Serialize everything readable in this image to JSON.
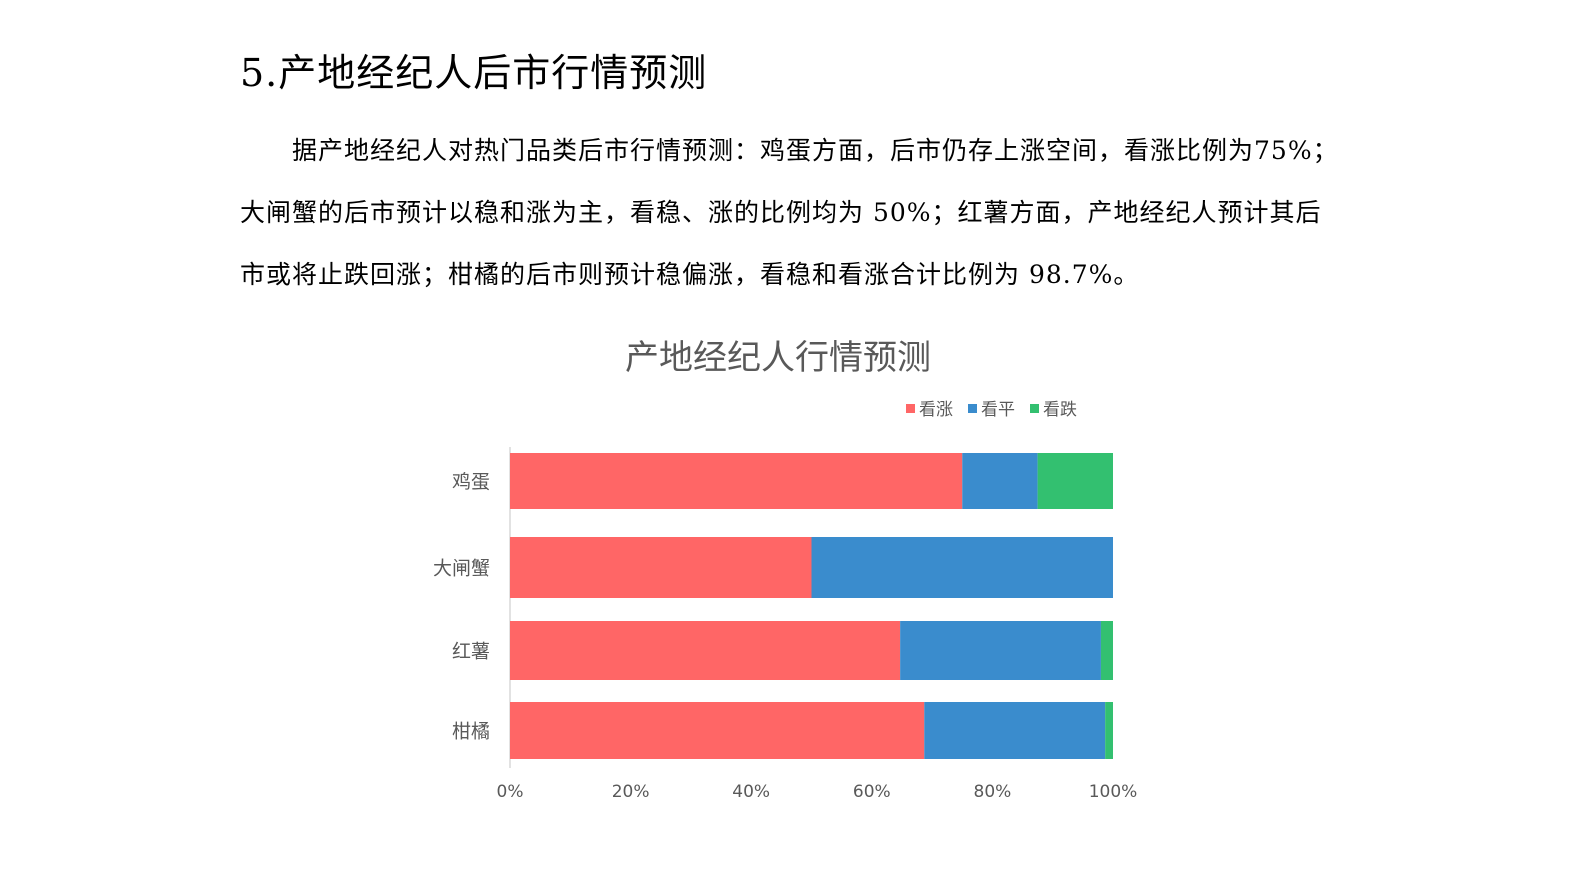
{
  "document": {
    "heading": "5.产地经纪人后市行情预测",
    "paragraph": "据产地经纪人对热门品类后市行情预测：鸡蛋方面，后市仍存上涨空间，看涨比例为75%；大闸蟹的后市预计以稳和涨为主，看稳、涨的比例均为 50%；红薯方面，产地经纪人预计其后市或将止跌回涨；柑橘的后市则预计稳偏涨，看稳和看涨合计比例为 98.7%。"
  },
  "chart_data": {
    "type": "bar",
    "orientation": "horizontal",
    "stacked": "percent",
    "title": "产地经纪人行情预测",
    "categories": [
      "鸡蛋",
      "大闸蟹",
      "红薯",
      "柑橘"
    ],
    "series": [
      {
        "name": "看涨",
        "color": "#ff6666",
        "values": [
          75,
          50,
          64.7,
          68.7
        ]
      },
      {
        "name": "看平",
        "color": "#3a8ccd",
        "values": [
          12.5,
          50,
          33.3,
          30.0
        ]
      },
      {
        "name": "看跌",
        "color": "#33c070",
        "values": [
          12.5,
          0,
          2.0,
          1.3
        ]
      }
    ],
    "xticks": [
      "0%",
      "20%",
      "40%",
      "60%",
      "80%",
      "100%"
    ],
    "xlim": [
      0,
      100
    ],
    "legend_position": "top",
    "grid": false
  }
}
